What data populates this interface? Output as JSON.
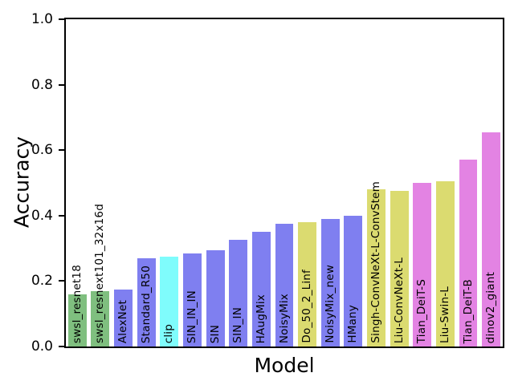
{
  "chart_data": {
    "type": "bar",
    "title": "",
    "xlabel": "Model",
    "ylabel": "Accuracy",
    "ylim": [
      0.0,
      1.0
    ],
    "yticks": [
      0.0,
      0.2,
      0.4,
      0.6,
      0.8,
      1.0
    ],
    "ytick_labels": [
      "0.0",
      "0.2",
      "0.4",
      "0.6",
      "0.8",
      "1.0"
    ],
    "grid": false,
    "legend_position": "none",
    "bar_label_rotation": 90,
    "bar_width_fraction": 0.8,
    "categories": [
      "swsl_resnet18",
      "swsl_resnext101_32x16d",
      "AlexNet",
      "Standard_R50",
      "clip",
      "SIN_IN_IN",
      "SIN",
      "SIN_IN",
      "HAugMix",
      "NoisyMix",
      "Do_50_2_Linf",
      "NoisyMix_new",
      "HMany",
      "Singh-ConvNeXt-L-ConvStem",
      "Liu-ConvNeXt-L",
      "Tian_DeiT-S",
      "Liu-Swin-L",
      "Tian_DeiT-B",
      "dinov2_giant"
    ],
    "values": [
      0.16,
      0.17,
      0.175,
      0.27,
      0.275,
      0.285,
      0.295,
      0.325,
      0.35,
      0.375,
      0.38,
      0.39,
      0.4,
      0.48,
      0.475,
      0.5,
      0.505,
      0.57,
      0.655
    ],
    "bar_colors": [
      "#7fbf7f",
      "#7fbf7f",
      "#7f7ff0",
      "#7f7ff0",
      "#7ffcfc",
      "#7f7ff0",
      "#7f7ff0",
      "#7f7ff0",
      "#7f7ff0",
      "#7f7ff0",
      "#dbdb70",
      "#7f7ff0",
      "#7f7ff0",
      "#dbdb70",
      "#dbdb70",
      "#e383e3",
      "#dbdb70",
      "#e383e3",
      "#e383e3"
    ],
    "axis_color": "#000000",
    "text_color": "#000000",
    "background_color": "#ffffff"
  }
}
